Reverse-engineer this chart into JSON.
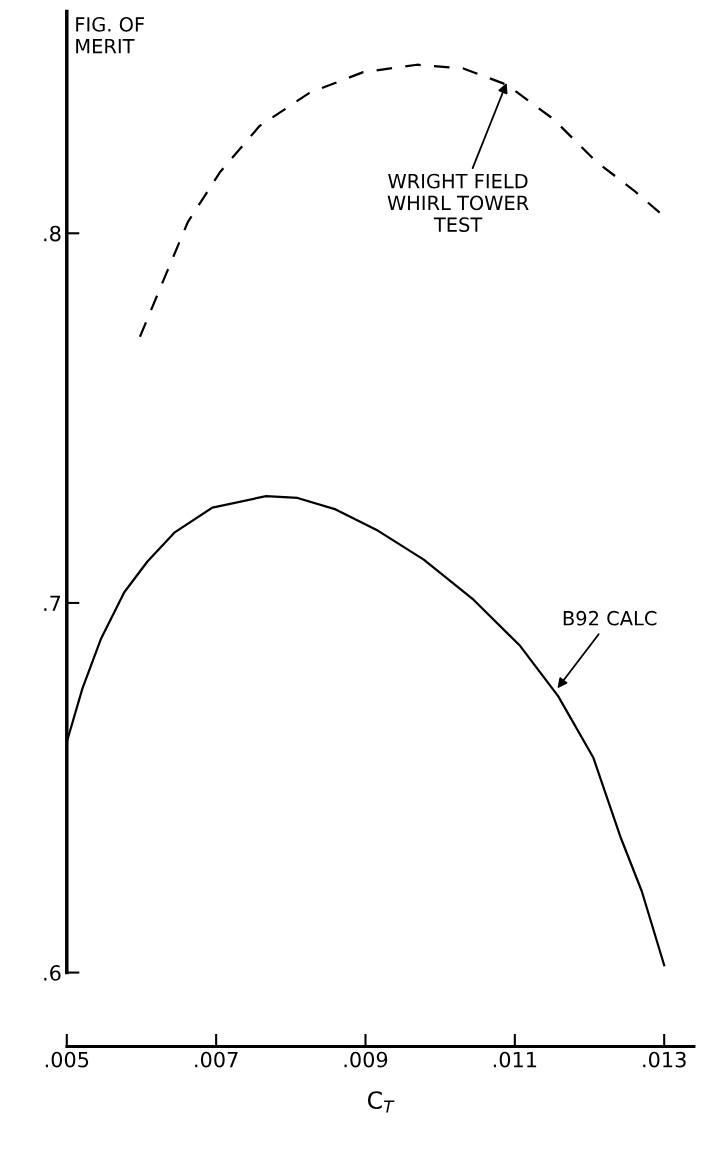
{
  "chart_data": {
    "type": "line",
    "ylabel": "FIG. OF\nMERIT",
    "xlabel": "C$_{T}$",
    "xlim": [
      0.005,
      0.0134
    ],
    "ylim": [
      0.58,
      0.86
    ],
    "xticks": [
      {
        "value": 0.005,
        "label": ".005"
      },
      {
        "value": 0.007,
        "label": ".007"
      },
      {
        "value": 0.009,
        "label": ".009"
      },
      {
        "value": 0.011,
        "label": ".011"
      },
      {
        "value": 0.013,
        "label": ".013"
      }
    ],
    "yticks": [
      {
        "value": 0.6,
        "label": ".6"
      },
      {
        "value": 0.7,
        "label": ".7"
      },
      {
        "value": 0.8,
        "label": ".8"
      }
    ],
    "grid": false,
    "legend": false,
    "marker": "none",
    "series": [
      {
        "color": "#000000",
        "line_style": "dashed",
        "x": [
          0.00598,
          0.00633,
          0.00662,
          0.00705,
          0.00758,
          0.00825,
          0.00897,
          0.00969,
          0.01031,
          0.01089,
          0.01151,
          0.01209,
          0.0126,
          0.013
        ],
        "values": [
          0.772,
          0.789,
          0.803,
          0.8165,
          0.829,
          0.838,
          0.8436,
          0.8456,
          0.8446,
          0.8402,
          0.831,
          0.8194,
          0.8115,
          0.8045
        ]
      },
      {
        "color": "#000000",
        "line_style": "solid",
        "x": [
          0.005,
          0.00521,
          0.00546,
          0.00577,
          0.00608,
          0.00644,
          0.00695,
          0.00767,
          0.00809,
          0.0086,
          0.00917,
          0.00978,
          0.01045,
          0.01107,
          0.01158,
          0.01205,
          0.01242,
          0.0127,
          0.013
        ],
        "values": [
          0.6624,
          0.6769,
          0.6904,
          0.7029,
          0.7112,
          0.719,
          0.7258,
          0.7289,
          0.7284,
          0.7253,
          0.7195,
          0.7117,
          0.7008,
          0.6884,
          0.6748,
          0.6582,
          0.6364,
          0.622,
          0.602
        ]
      }
    ],
    "annotations": [
      {
        "text": "WRIGHT FIELD\nWHIRL TOWER\nTEST",
        "x": 0.01089,
        "y": 0.8407
      },
      {
        "text": "B92 CALC",
        "x": 0.01157,
        "y": 0.6769
      }
    ]
  }
}
